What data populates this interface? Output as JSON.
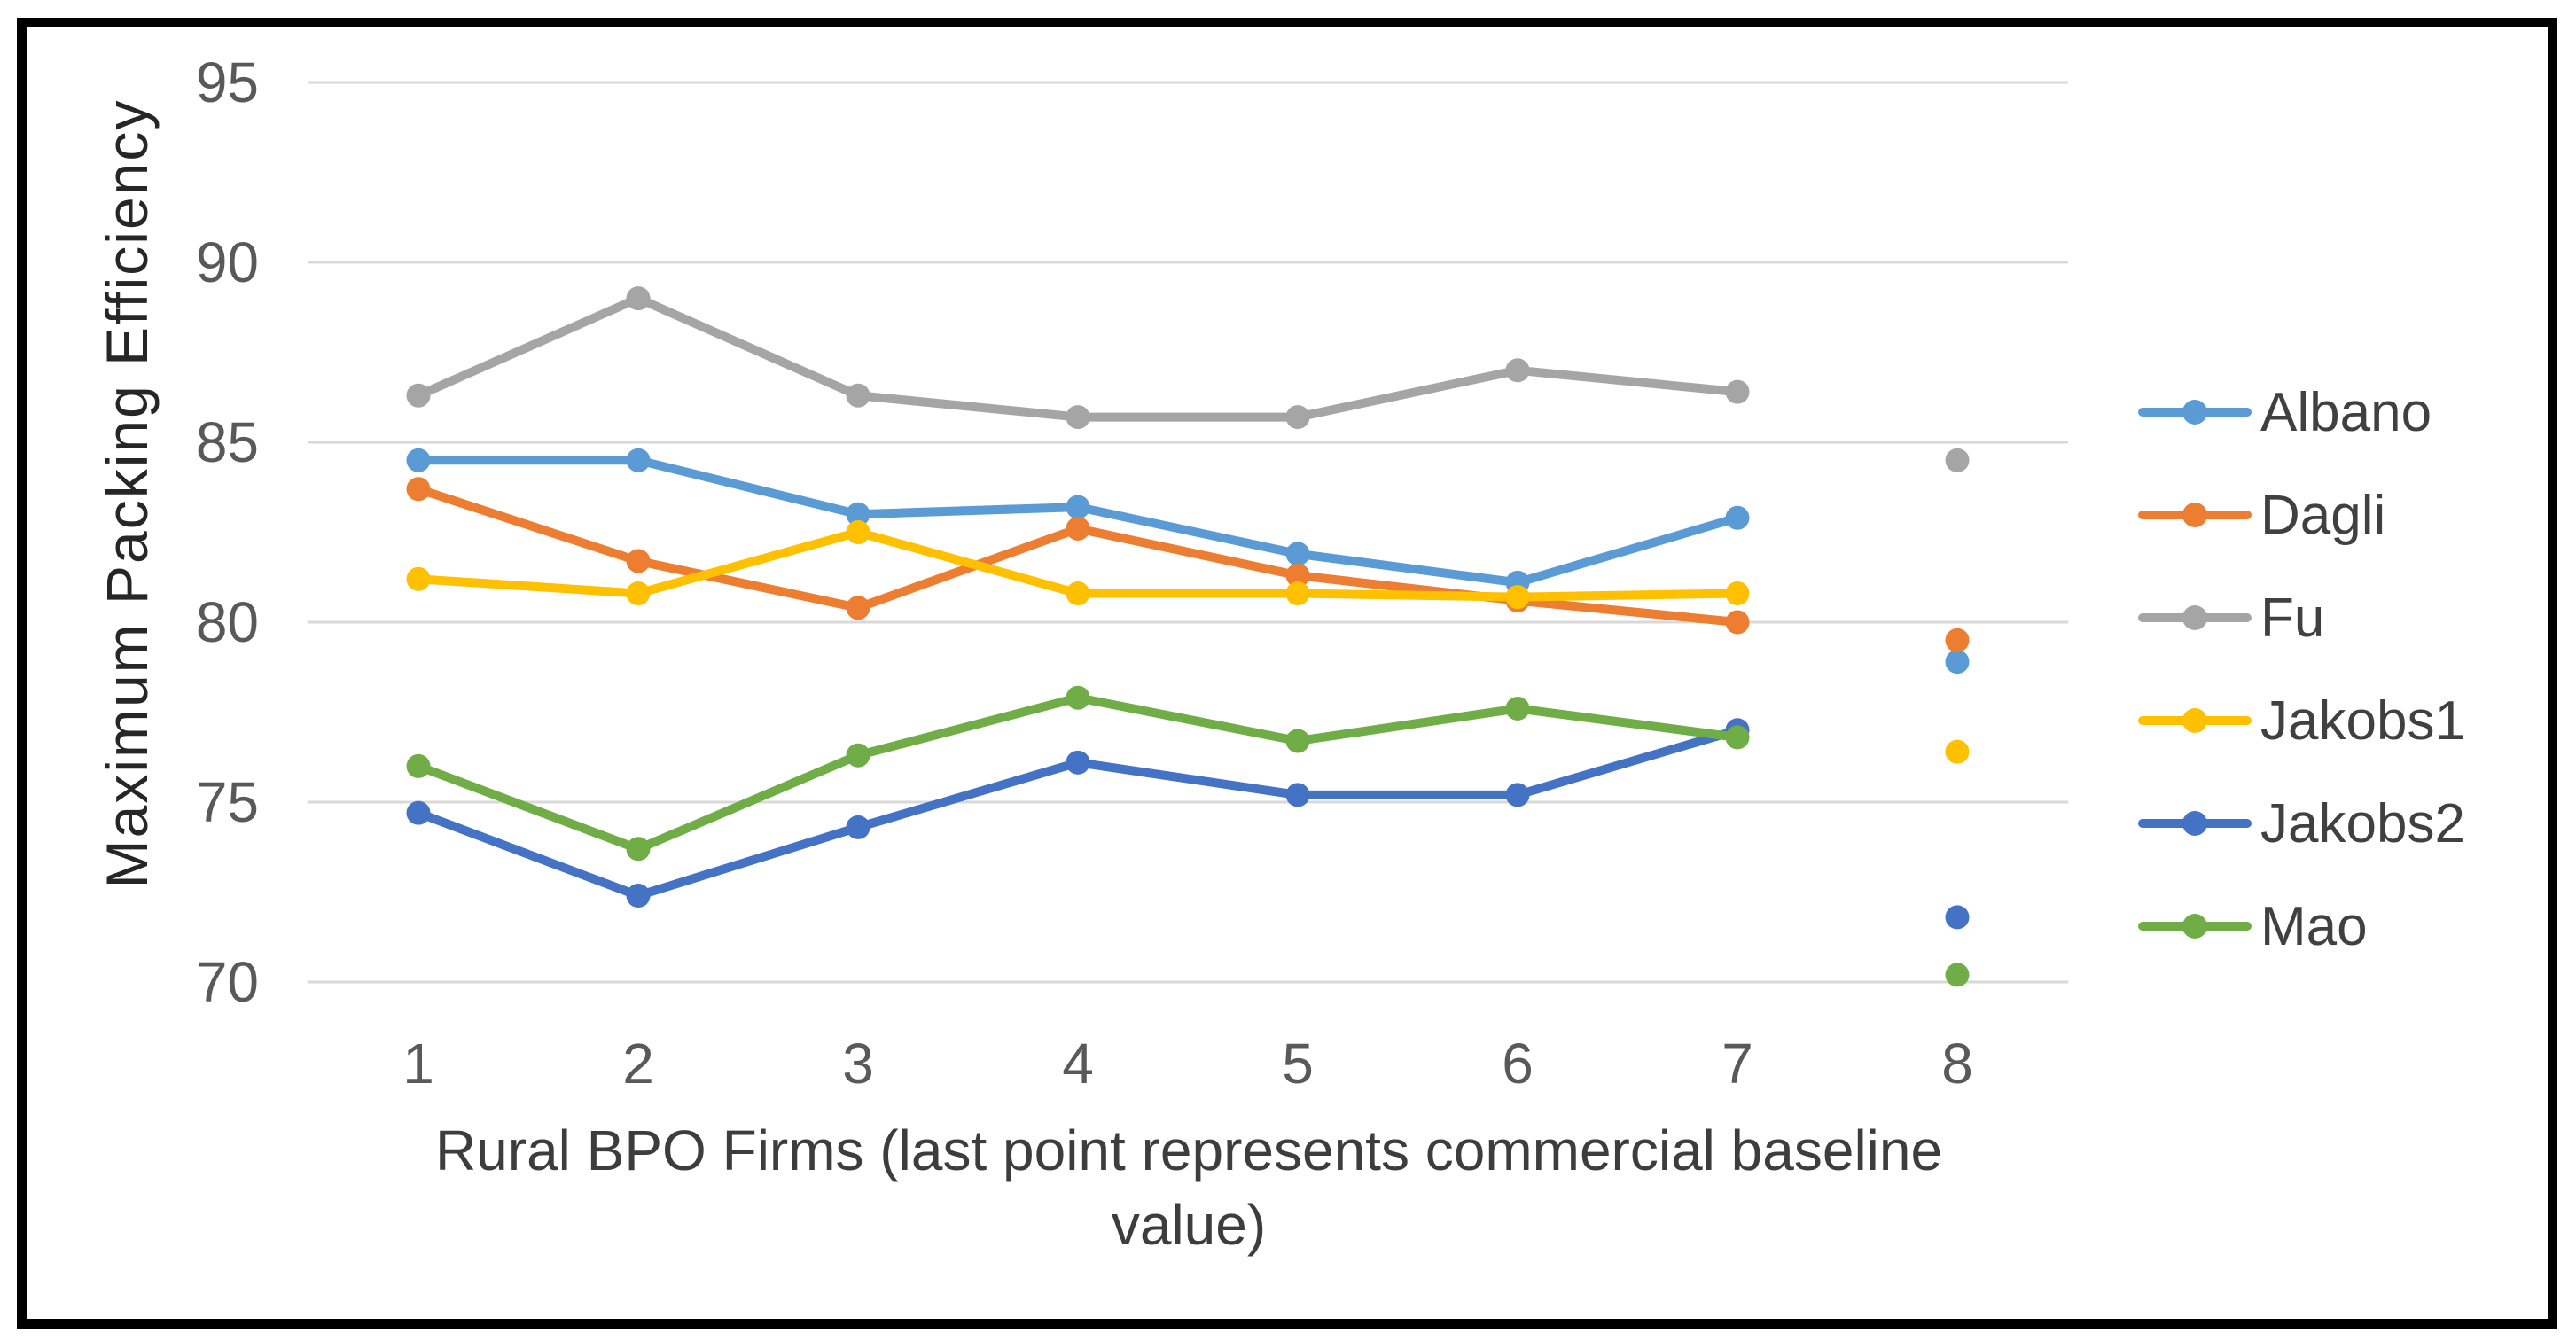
{
  "chart_data": {
    "type": "line",
    "title": "",
    "xlabel": "Rural BPO Firms (last point represents commercial baseline value)",
    "xlabel_lines": [
      "Rural BPO Firms (last point represents commercial baseline",
      "value)"
    ],
    "ylabel": "Maximum Packing Efficiency",
    "x": [
      1,
      2,
      3,
      4,
      5,
      6,
      7,
      8
    ],
    "x_tick_labels": [
      "1",
      "2",
      "3",
      "4",
      "5",
      "6",
      "7",
      "8"
    ],
    "y_ticks": [
      95,
      90,
      85,
      80,
      75,
      70
    ],
    "y_tick_labels": [
      "95",
      "90",
      "85",
      "80",
      "75",
      "70"
    ],
    "ylim": [
      70,
      95
    ],
    "grid": "horizontal",
    "legend_position": "right",
    "last_point_detached": true,
    "series": [
      {
        "name": "Albano",
        "color": "#5B9BD5",
        "values": [
          84.5,
          84.5,
          83.0,
          83.2,
          81.9,
          81.1,
          82.9,
          78.9
        ]
      },
      {
        "name": "Dagli",
        "color": "#ED7D31",
        "values": [
          83.7,
          81.7,
          80.4,
          82.6,
          81.3,
          80.6,
          80.0,
          79.5
        ]
      },
      {
        "name": "Fu",
        "color": "#A5A5A5",
        "values": [
          86.3,
          89.0,
          86.3,
          85.7,
          85.7,
          87.0,
          86.4,
          84.5
        ]
      },
      {
        "name": "Jakobs1",
        "color": "#FFC000",
        "values": [
          81.2,
          80.8,
          82.5,
          80.8,
          80.8,
          80.7,
          80.8,
          76.4
        ]
      },
      {
        "name": "Jakobs2",
        "color": "#4472C4",
        "values": [
          74.7,
          72.4,
          74.3,
          76.1,
          75.2,
          75.2,
          77.0,
          71.8
        ]
      },
      {
        "name": "Mao",
        "color": "#70AD47",
        "values": [
          76.0,
          73.7,
          76.3,
          77.9,
          76.7,
          77.6,
          76.8,
          70.2
        ]
      }
    ]
  },
  "colors": {
    "gridline": "#D9D9D9",
    "tick_text": "#595959",
    "x_axis_title": "#3D3D3D",
    "y_axis_title": "#262626",
    "frame": "#000000",
    "background": "#FFFFFF"
  }
}
